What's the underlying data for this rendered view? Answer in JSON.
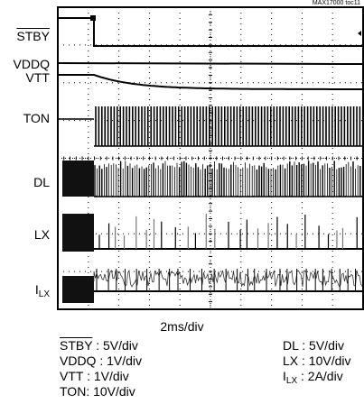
{
  "figure_id": "MAX17000 toc11",
  "chart_data": {
    "type": "line",
    "title": "",
    "xlabel": "2ms/div",
    "ylabel": "",
    "grid": true,
    "x_divisions": 10,
    "y_divisions": 8,
    "x_scale": "2ms/div",
    "series": [
      {
        "name": "STBY",
        "name_overline": true,
        "name_sub": "",
        "scale": ": 5V/div"
      },
      {
        "name": "VDDQ",
        "name_overline": false,
        "name_sub": "",
        "scale": ": 1V/div"
      },
      {
        "name": "VTT",
        "name_overline": false,
        "name_sub": "",
        "scale": ": 1V/div"
      },
      {
        "name": "TON",
        "name_overline": false,
        "name_sub": "",
        "scale": ": 10V/div"
      },
      {
        "name": "DL",
        "name_overline": false,
        "name_sub": "",
        "scale": ": 5V/div"
      },
      {
        "name": "LX",
        "name_overline": false,
        "name_sub": "",
        "scale": ": 10V/div"
      },
      {
        "name": "I",
        "name_overline": false,
        "name_sub": "LX",
        "scale": ": 2A/div"
      }
    ]
  },
  "scale_legend": {
    "left": [
      {
        "name": "STBY",
        "overline": true,
        "sub": "",
        "value": " : 5V/div"
      },
      {
        "name": "VDDQ",
        "overline": false,
        "sub": "",
        "value": " : 1V/div"
      },
      {
        "name": "VTT",
        "overline": false,
        "sub": "",
        "value": " : 1V/div"
      },
      {
        "name": "TON",
        "overline": false,
        "sub": "",
        "value": ": 10V/div"
      }
    ],
    "right": [
      {
        "name": "DL",
        "overline": false,
        "sub": "",
        "value": " : 5V/div"
      },
      {
        "name": "LX",
        "overline": false,
        "sub": "",
        "value": " : 10V/div"
      },
      {
        "name": "I",
        "overline": false,
        "sub": "LX",
        "value": " : 2A/div"
      }
    ]
  }
}
